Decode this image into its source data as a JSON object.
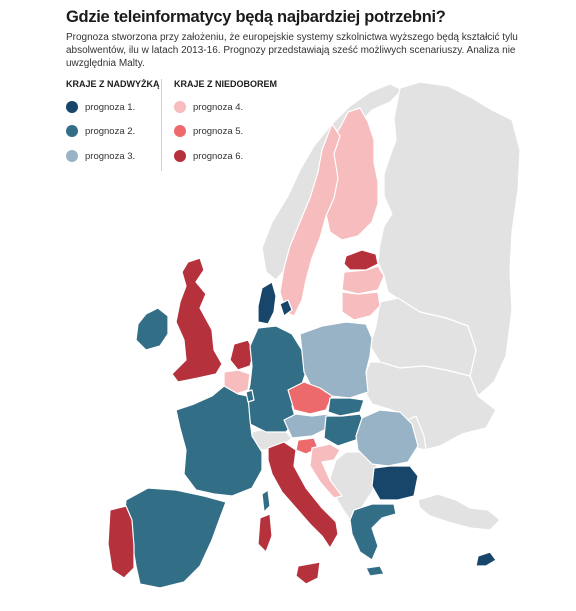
{
  "header": {
    "title": "Gdzie teleinformatycy będą najbardziej potrzebni?",
    "subtitle": "Prognoza stworzona przy założeniu, że europejskie systemy szkolnictwa wyższego będą kształcić tylu absolwentów, ilu w latach 2013-16. Prognozy przedstawiają sześć możliwych scenariuszy. Analiza nie uwzględnia Malty."
  },
  "legend": {
    "surplus_heading": "KRAJE Z NADWYŻKĄ",
    "shortage_heading": "KRAJE Z NIEDOBOREM",
    "surplus": [
      {
        "label": "prognoza 1.",
        "color": "#17466a"
      },
      {
        "label": "prognoza 2.",
        "color": "#336e87"
      },
      {
        "label": "prognoza 3.",
        "color": "#97b3c5"
      }
    ],
    "shortage": [
      {
        "label": "prognoza 4.",
        "color": "#f7bcbd"
      },
      {
        "label": "prognoza 5.",
        "color": "#ec6a6c"
      },
      {
        "label": "prognoza 6.",
        "color": "#b5323c"
      }
    ]
  },
  "map_colors": {
    "no_data": "#e2e2e2",
    "p1": "#17466a",
    "p2": "#336e87",
    "p3": "#97b3c5",
    "p4": "#f7bcbd",
    "p5": "#ec6a6c",
    "p6": "#b5323c"
  }
}
